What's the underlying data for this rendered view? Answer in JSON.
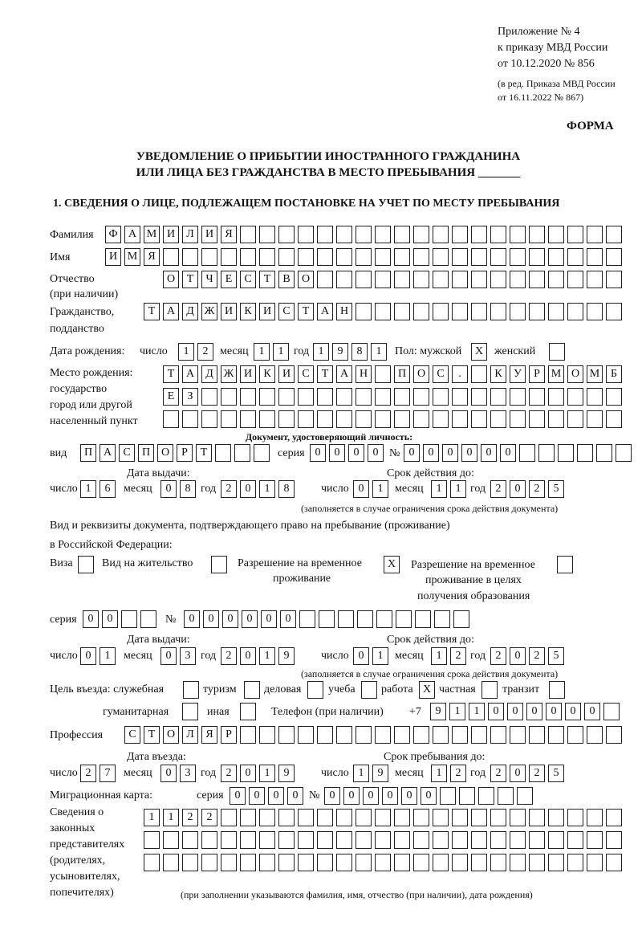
{
  "header": {
    "appendix": "Приложение № 4",
    "order": "к приказу МВД России",
    "order_date": "от 10.12.2020 № 856",
    "edition_1": "(в ред. Приказа МВД России",
    "edition_2": "от 16.11.2022 № 867)",
    "form_label": "ФОРМА",
    "title_1": "УВЕДОМЛЕНИЕ О ПРИБЫТИИ ИНОСТРАННОГО ГРАЖДАНИНА",
    "title_2": "ИЛИ ЛИЦА БЕЗ ГРАЖДАНСТВА В МЕСТО ПРЕБЫВАНИЯ _______",
    "section_1": "1. СВЕДЕНИЯ О ЛИЦЕ, ПОДЛЕЖАЩЕМ ПОСТАНОВКЕ НА УЧЕТ ПО МЕСТУ ПРЕБЫВАНИЯ"
  },
  "labels": {
    "surname": "Фамилия",
    "name": "Имя",
    "patronymic": "Отчество",
    "patronymic_note": "(при наличии)",
    "citizenship": "Гражданство,",
    "citizenship_2": "подданство",
    "birth_date": "Дата рождения:",
    "day": "число",
    "month": "месяц",
    "year": "год",
    "sex": "Пол: мужской",
    "female": "женский",
    "birthplace_1": "Место рождения:",
    "birthplace_2": "государство",
    "birthplace_3": "город или другой",
    "birthplace_4": "населенный пункт",
    "id_doc": "Документ, удостоверяющий личность:",
    "kind": "вид",
    "series": "серия",
    "number": "№",
    "issue_date": "Дата выдачи:",
    "valid_until": "Срок действия до:",
    "validity_note": "(заполняется в случае ограничения срока действия документа)",
    "right_doc_1": "Вид и реквизиты документа, подтверждающего право на пребывание (проживание)",
    "right_doc_2": "в Российской Федерации:",
    "visa": "Виза",
    "residence": "Вид на жительство",
    "trp_1": "Разрешение на временное",
    "trp_2": "проживание",
    "trp_edu_1": "Разрешение на временное",
    "trp_edu_2": "проживание в целях",
    "trp_edu_3": "получения образования",
    "purpose": "Цель въезда: служебная",
    "tourism": "туризм",
    "business": "деловая",
    "study": "учеба",
    "work": "работа",
    "private": "частная",
    "transit": "транзит",
    "humanitarian": "гуманитарная",
    "other": "иная",
    "phone": "Телефон (при наличии)",
    "phone_prefix": "+7",
    "profession": "Профессия",
    "entry_date": "Дата въезда:",
    "stay_until": "Срок пребывания до:",
    "migration_card": "Миграционная карта:",
    "reps_1": "Сведения о",
    "reps_2": "законных",
    "reps_3": "представителях",
    "reps_4": "(родителях,",
    "reps_5": "усыновителях,",
    "reps_6": "попечителях)",
    "reps_note": "(при заполнении указываются фамилия, имя, отчество (при наличии), дата рождения)"
  },
  "values": {
    "surname": "ФАМИЛИЯ",
    "name": "ИМЯ",
    "patronymic": "ОТЧЕСТВО",
    "citizenship": "ТАДЖИКИСТАН",
    "birth_day": "12",
    "birth_month": "11",
    "birth_year": "1981",
    "male": "X",
    "female": "",
    "birthplace_1": "ТАДЖИКИСТАН ПОС. КУРМОМБ",
    "birthplace_2": "ЕЗ",
    "birthplace_3": "",
    "id_kind": "ПАСПОРТ",
    "id_series": "0000",
    "id_number": "000000",
    "id_issue_day": "16",
    "id_issue_month": "08",
    "id_issue_year": "2018",
    "id_valid_day": "01",
    "id_valid_month": "11",
    "id_valid_year": "2025",
    "visa": "",
    "residence": "",
    "trp": "X",
    "trp_edu": "",
    "rd_series": "00",
    "rd_number": "000000",
    "rd_issue_day": "01",
    "rd_issue_month": "03",
    "rd_issue_year": "2019",
    "rd_valid_day": "01",
    "rd_valid_month": "12",
    "rd_valid_year": "2025",
    "p_service": "",
    "p_tourism": "",
    "p_business": "",
    "p_study": "",
    "p_work": "X",
    "p_private": "",
    "p_transit": "",
    "p_humanitarian": "",
    "p_other": "",
    "phone": "911000000",
    "profession": "СТОЛЯР",
    "entry_day": "27",
    "entry_month": "03",
    "entry_year": "2019",
    "stay_day": "19",
    "stay_month": "12",
    "stay_year": "2025",
    "mc_series": "0000",
    "mc_number": "000000",
    "reps_1": "1122",
    "reps_2": "",
    "reps_3": ""
  }
}
